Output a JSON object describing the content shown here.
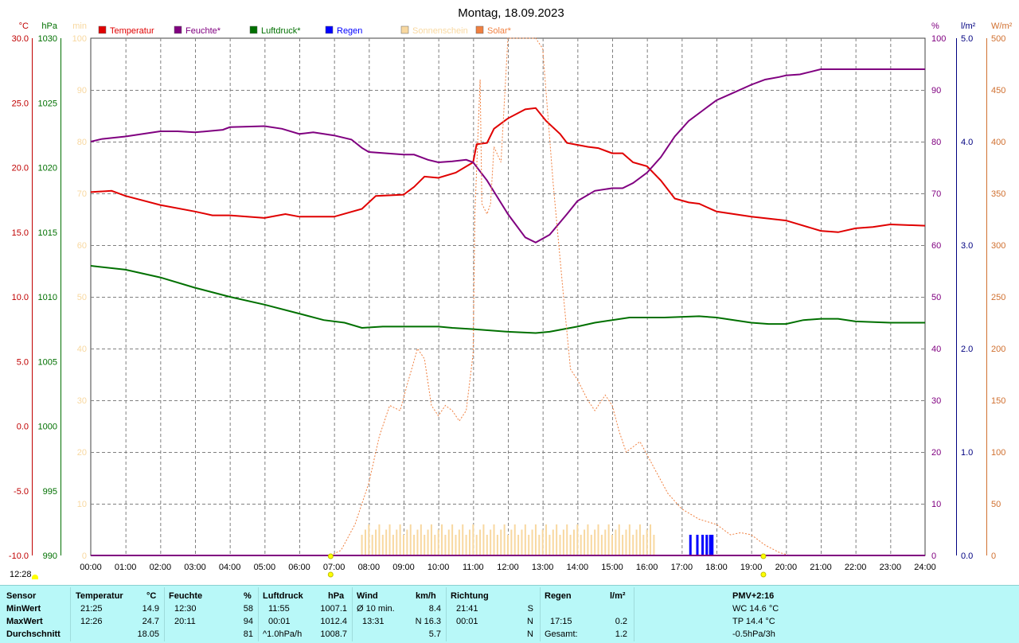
{
  "chart_data": {
    "type": "line",
    "title": "Montag, 18.09.2023",
    "x_ticks": [
      "00:00",
      "01:00",
      "02:00",
      "03:00",
      "04:00",
      "05:00",
      "06:00",
      "07:00",
      "08:00",
      "09:00",
      "10:00",
      "11:00",
      "12:00",
      "13:00",
      "14:00",
      "15:00",
      "16:00",
      "17:00",
      "18:00",
      "19:00",
      "20:00",
      "21:00",
      "22:00",
      "23:00",
      "24:00"
    ],
    "xlim": [
      0,
      24
    ],
    "grid": true,
    "legend": [
      {
        "name": "Temperatur",
        "color": "#e00000"
      },
      {
        "name": "Feuchte*",
        "color": "#800080"
      },
      {
        "name": "Luftdruck*",
        "color": "#007000"
      },
      {
        "name": "Regen",
        "color": "#0000ff"
      },
      {
        "name": "Sonnenschein",
        "color": "#f8d8a0"
      },
      {
        "name": "Solar*",
        "color": "#f08040"
      }
    ],
    "axes": {
      "temp": {
        "unit": "°C",
        "color": "#c00000",
        "min": -10,
        "max": 30,
        "ticks": [
          "30.0",
          "25.0",
          "20.0",
          "15.0",
          "10.0",
          "5.0",
          "0.0",
          "-5.0",
          "-10.0"
        ]
      },
      "pressure": {
        "unit": "hPa",
        "color": "#007000",
        "min": 990,
        "max": 1030,
        "ticks": [
          "1030",
          "1025",
          "1020",
          "1015",
          "1010",
          "1005",
          "1000",
          "995",
          "990"
        ]
      },
      "sunshine": {
        "unit": "min",
        "color": "#f8d8a0",
        "min": 0,
        "max": 100,
        "ticks": [
          "100",
          "90",
          "80",
          "70",
          "60",
          "50",
          "40",
          "30",
          "20",
          "10",
          "0"
        ]
      },
      "humidity": {
        "unit": "%",
        "color": "#800080",
        "min": 0,
        "max": 100,
        "ticks": [
          "100",
          "90",
          "80",
          "70",
          "60",
          "50",
          "40",
          "30",
          "20",
          "10",
          "0"
        ]
      },
      "rain": {
        "unit": "l/m²",
        "color": "#000080",
        "min": 0,
        "max": 5,
        "ticks": [
          "5.0",
          "4.0",
          "3.0",
          "2.0",
          "1.0",
          "0.0"
        ]
      },
      "solar": {
        "unit": "W/m²",
        "color": "#d07030",
        "min": 0,
        "max": 500,
        "ticks": [
          "500",
          "450",
          "400",
          "350",
          "300",
          "250",
          "200",
          "150",
          "100",
          "50",
          "0"
        ]
      }
    },
    "series": [
      {
        "name": "Temperatur",
        "axis": "temp",
        "color": "#e00000",
        "points": [
          [
            0,
            18.1
          ],
          [
            0.6,
            18.2
          ],
          [
            1,
            17.8
          ],
          [
            2,
            17.1
          ],
          [
            3,
            16.6
          ],
          [
            3.5,
            16.3
          ],
          [
            4,
            16.3
          ],
          [
            5,
            16.1
          ],
          [
            5.6,
            16.4
          ],
          [
            6,
            16.2
          ],
          [
            7,
            16.2
          ],
          [
            7.8,
            16.8
          ],
          [
            8.2,
            17.8
          ],
          [
            9,
            17.9
          ],
          [
            9.3,
            18.5
          ],
          [
            9.6,
            19.3
          ],
          [
            10,
            19.2
          ],
          [
            10.5,
            19.6
          ],
          [
            11,
            20.4
          ],
          [
            11.1,
            21.8
          ],
          [
            11.4,
            21.9
          ],
          [
            11.6,
            23.0
          ],
          [
            12,
            23.8
          ],
          [
            12.5,
            24.5
          ],
          [
            12.8,
            24.6
          ],
          [
            13.1,
            23.6
          ],
          [
            13.5,
            22.6
          ],
          [
            13.7,
            21.9
          ],
          [
            14.3,
            21.6
          ],
          [
            14.6,
            21.5
          ],
          [
            15,
            21.1
          ],
          [
            15.3,
            21.1
          ],
          [
            15.6,
            20.4
          ],
          [
            16,
            20.1
          ],
          [
            16.4,
            19.0
          ],
          [
            16.8,
            17.6
          ],
          [
            17.2,
            17.3
          ],
          [
            17.5,
            17.2
          ],
          [
            18,
            16.6
          ],
          [
            19,
            16.2
          ],
          [
            20,
            15.9
          ],
          [
            21,
            15.1
          ],
          [
            21.5,
            15.0
          ],
          [
            22,
            15.3
          ],
          [
            22.5,
            15.4
          ],
          [
            23,
            15.6
          ],
          [
            24,
            15.5
          ]
        ]
      },
      {
        "name": "Feuchte*",
        "axis": "humidity",
        "color": "#800080",
        "points": [
          [
            0,
            80
          ],
          [
            0.3,
            80.5
          ],
          [
            1,
            81
          ],
          [
            2,
            82
          ],
          [
            2.5,
            82
          ],
          [
            3,
            81.8
          ],
          [
            3.8,
            82.3
          ],
          [
            4,
            82.8
          ],
          [
            5,
            83
          ],
          [
            5.5,
            82.5
          ],
          [
            6,
            81.5
          ],
          [
            6.4,
            81.8
          ],
          [
            7,
            81.2
          ],
          [
            7.5,
            80.4
          ],
          [
            7.8,
            78.8
          ],
          [
            8,
            78
          ],
          [
            9,
            77.5
          ],
          [
            9.3,
            77.5
          ],
          [
            9.7,
            76.5
          ],
          [
            10,
            76
          ],
          [
            10.4,
            76.2
          ],
          [
            10.8,
            76.5
          ],
          [
            11,
            76
          ],
          [
            11.4,
            72.5
          ],
          [
            12,
            66
          ],
          [
            12.5,
            61.5
          ],
          [
            12.8,
            60.5
          ],
          [
            13.2,
            62
          ],
          [
            13.7,
            66
          ],
          [
            14,
            68.5
          ],
          [
            14.5,
            70.5
          ],
          [
            15,
            71
          ],
          [
            15.3,
            71
          ],
          [
            15.6,
            72
          ],
          [
            16,
            74
          ],
          [
            16.4,
            77
          ],
          [
            16.8,
            81
          ],
          [
            17.2,
            84
          ],
          [
            17.6,
            86
          ],
          [
            18,
            88
          ],
          [
            18.5,
            89.5
          ],
          [
            19,
            91
          ],
          [
            19.4,
            92
          ],
          [
            19.8,
            92.5
          ],
          [
            20,
            92.8
          ],
          [
            20.4,
            93
          ],
          [
            20.7,
            93.5
          ],
          [
            21,
            94
          ],
          [
            24,
            94
          ]
        ]
      },
      {
        "name": "Luftdruck*",
        "axis": "pressure",
        "color": "#007000",
        "points": [
          [
            0,
            1012.4
          ],
          [
            1,
            1012.1
          ],
          [
            2,
            1011.5
          ],
          [
            3,
            1010.7
          ],
          [
            4,
            1010.0
          ],
          [
            5,
            1009.4
          ],
          [
            6,
            1008.7
          ],
          [
            6.7,
            1008.2
          ],
          [
            7.3,
            1008.0
          ],
          [
            7.8,
            1007.6
          ],
          [
            8.4,
            1007.7
          ],
          [
            9,
            1007.7
          ],
          [
            10,
            1007.7
          ],
          [
            10.4,
            1007.6
          ],
          [
            11,
            1007.5
          ],
          [
            12,
            1007.3
          ],
          [
            12.8,
            1007.2
          ],
          [
            13.2,
            1007.3
          ],
          [
            14,
            1007.7
          ],
          [
            14.5,
            1008.0
          ],
          [
            15,
            1008.2
          ],
          [
            15.5,
            1008.4
          ],
          [
            16.5,
            1008.4
          ],
          [
            17.5,
            1008.5
          ],
          [
            18,
            1008.4
          ],
          [
            18.5,
            1008.2
          ],
          [
            19,
            1008.0
          ],
          [
            19.5,
            1007.9
          ],
          [
            20,
            1007.9
          ],
          [
            20.5,
            1008.2
          ],
          [
            21,
            1008.3
          ],
          [
            21.5,
            1008.3
          ],
          [
            22,
            1008.1
          ],
          [
            23,
            1008.0
          ],
          [
            24,
            1008.0
          ]
        ]
      },
      {
        "name": "Solar*",
        "axis": "solar",
        "color": "#f08040",
        "points": [
          [
            6.9,
            0
          ],
          [
            7.2,
            5
          ],
          [
            7.6,
            30
          ],
          [
            8,
            70
          ],
          [
            8.3,
            115
          ],
          [
            8.6,
            145
          ],
          [
            8.9,
            140
          ],
          [
            9.1,
            165
          ],
          [
            9.4,
            200
          ],
          [
            9.6,
            190
          ],
          [
            9.8,
            145
          ],
          [
            10,
            135
          ],
          [
            10.2,
            145
          ],
          [
            10.4,
            140
          ],
          [
            10.6,
            130
          ],
          [
            10.8,
            140
          ],
          [
            11,
            195
          ],
          [
            11.05,
            330
          ],
          [
            11.2,
            460
          ],
          [
            11.25,
            340
          ],
          [
            11.4,
            330
          ],
          [
            11.5,
            340
          ],
          [
            11.6,
            395
          ],
          [
            11.8,
            380
          ],
          [
            12,
            500
          ],
          [
            12.2,
            500
          ],
          [
            12.8,
            500
          ],
          [
            13,
            490
          ],
          [
            13.3,
            360
          ],
          [
            13.6,
            250
          ],
          [
            13.8,
            180
          ],
          [
            14,
            170
          ],
          [
            14.3,
            150
          ],
          [
            14.5,
            140
          ],
          [
            14.8,
            155
          ],
          [
            15,
            145
          ],
          [
            15.2,
            120
          ],
          [
            15.4,
            100
          ],
          [
            15.6,
            105
          ],
          [
            15.8,
            110
          ],
          [
            16.2,
            85
          ],
          [
            16.6,
            60
          ],
          [
            17,
            45
          ],
          [
            17.5,
            35
          ],
          [
            18,
            30
          ],
          [
            18.4,
            20
          ],
          [
            18.7,
            22
          ],
          [
            19,
            20
          ],
          [
            19.4,
            10
          ],
          [
            19.8,
            3
          ],
          [
            20.1,
            0
          ],
          [
            24,
            0
          ]
        ]
      }
    ],
    "sunshine_bars": {
      "start": 7.8,
      "end": 16.2,
      "step": 0.1,
      "min": 4,
      "max": 6
    },
    "rain_bars": {
      "times": [
        17.25,
        17.45,
        17.6,
        17.72,
        17.82,
        17.88
      ],
      "heights": [
        0.2,
        0.2,
        0.2,
        0.2,
        0.2,
        0.2
      ]
    }
  },
  "footer": {
    "time": "12:28",
    "columns": {
      "sensor": {
        "header": "Sensor",
        "rows": [
          "MinWert",
          "MaxWert",
          "Durchschnitt"
        ]
      },
      "temperatur": {
        "header": "Temperatur",
        "unit": "°C",
        "times": [
          "21:25",
          "12:26",
          ""
        ],
        "values": [
          "14.9",
          "24.7",
          "18.05"
        ]
      },
      "feuchte": {
        "header": "Feuchte",
        "unit": "%",
        "times": [
          "12:30",
          "20:11",
          ""
        ],
        "values": [
          "58",
          "94",
          "81"
        ]
      },
      "luftdruck": {
        "header": "Luftdruck",
        "unit": "hPa",
        "times": [
          "11:55",
          "00:01",
          "^1.0hPa/h"
        ],
        "values": [
          "1007.1",
          "1012.4",
          "1008.7"
        ]
      },
      "wind": {
        "header": "Wind",
        "unit": "km/h",
        "times": [
          "Ø 10 min.",
          "13:31",
          ""
        ],
        "values": [
          "8.4",
          "N 16.3",
          "5.7"
        ]
      },
      "richtung": {
        "header": "Richtung",
        "times": [
          "21:41",
          "00:01",
          ""
        ],
        "values": [
          "S",
          "N",
          "N"
        ]
      },
      "regen": {
        "header": "Regen",
        "unit": "l/m²",
        "times": [
          "",
          "17:15",
          "Gesamt:"
        ],
        "values": [
          "",
          "0.2",
          "1.2"
        ]
      },
      "pmv": {
        "header": "PMV+2:16",
        "rows": [
          "WC 14.6 °C",
          "TP 14.4 °C",
          "-0.5hPa/3h"
        ]
      }
    }
  }
}
